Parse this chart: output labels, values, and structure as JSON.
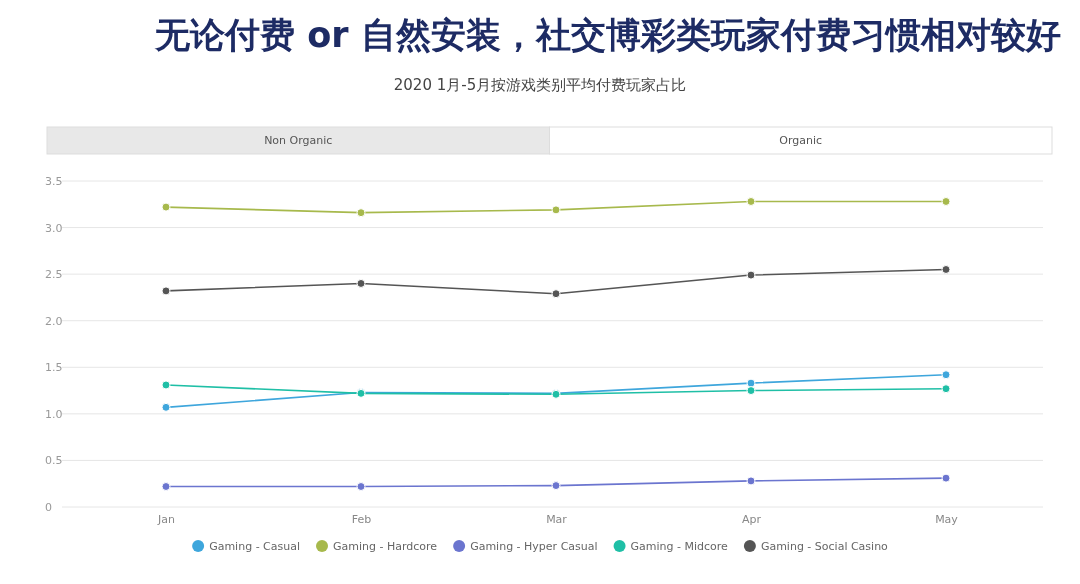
{
  "chart_data": {
    "type": "line",
    "title": "无论付费 or 自然安装，社交博彩类玩家付费习惯相对较好",
    "subtitle": "2020 1月-5月按游戏类别平均付费玩家占比",
    "annotations": [
      "Non Organic",
      "Organic"
    ],
    "categories": [
      "Jan",
      "Feb",
      "Mar",
      "Apr",
      "May"
    ],
    "series": [
      {
        "name": "Gaming - Casual",
        "color": "#3ea6dc",
        "values": [
          1.07,
          1.23,
          1.22,
          1.33,
          1.42
        ]
      },
      {
        "name": "Gaming - Hardcore",
        "color": "#a7b94c",
        "values": [
          3.22,
          3.16,
          3.19,
          3.28,
          3.28
        ]
      },
      {
        "name": "Gaming - Hyper Casual",
        "color": "#6b75cf",
        "values": [
          0.22,
          0.22,
          0.23,
          0.28,
          0.31
        ]
      },
      {
        "name": "Gaming - Midcore",
        "color": "#1fbfa6",
        "values": [
          1.31,
          1.22,
          1.21,
          1.25,
          1.27
        ]
      },
      {
        "name": "Gaming - Social Casino",
        "color": "#555555",
        "values": [
          2.32,
          2.4,
          2.29,
          2.49,
          2.55
        ]
      }
    ],
    "ylim": [
      0,
      3.5
    ],
    "yticks": [
      0,
      0.5,
      {
        "value": 1,
        "label": "1.0"
      },
      1.5,
      {
        "value": 2,
        "label": "2.0"
      },
      2.5,
      {
        "value": 3,
        "label": "3.0"
      },
      3.5
    ],
    "grid": "y",
    "legend": "bottom",
    "marker": "circle",
    "line_style": "solid"
  }
}
